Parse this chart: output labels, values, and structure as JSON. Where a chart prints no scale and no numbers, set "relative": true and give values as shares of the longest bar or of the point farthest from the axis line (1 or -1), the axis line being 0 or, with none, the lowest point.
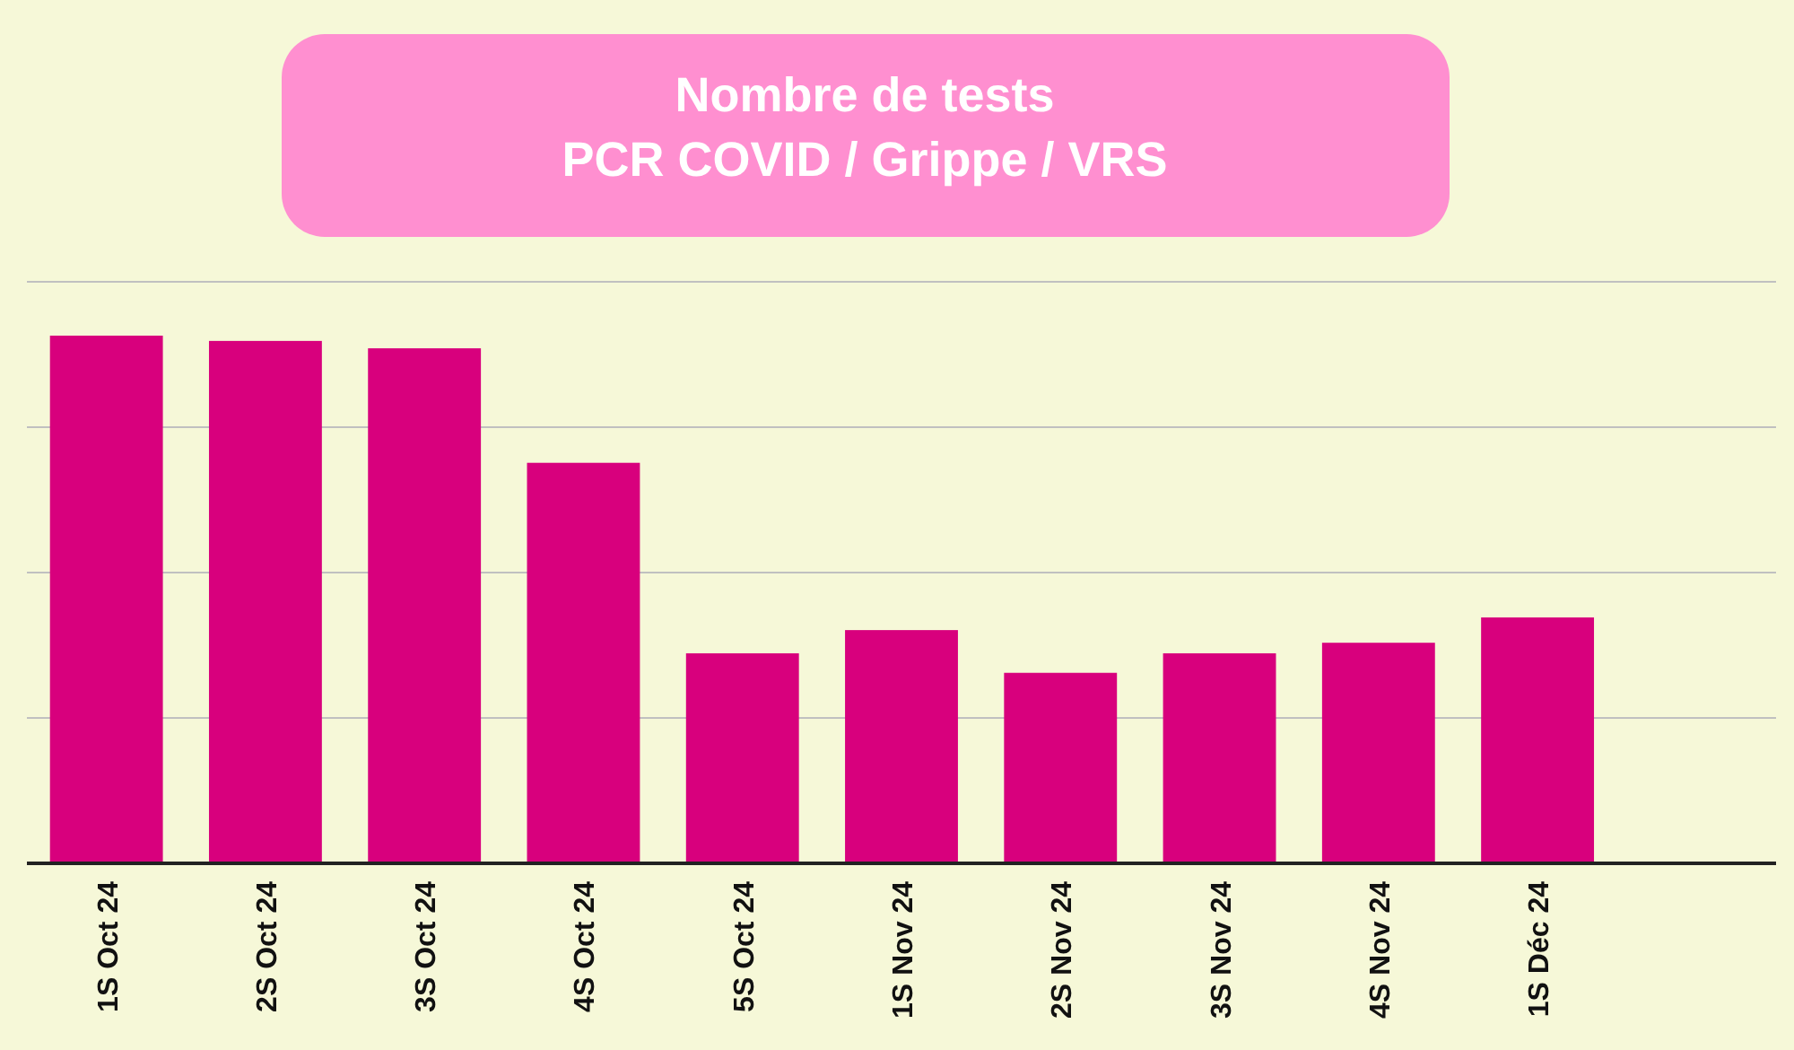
{
  "chart_data": {
    "type": "bar",
    "title": "Nombre de tests\nPCR COVID / Grippe / VRS",
    "categories": [
      "1S Oct 24",
      "2S Oct 24",
      "3S Oct 24",
      "4S Oct 24",
      "5S Oct 24",
      "1S Nov 24",
      "2S Nov 24",
      "3S Nov 24",
      "4S Nov 24",
      "1S Déc 24"
    ],
    "values": [
      1,
      0.99,
      0.976,
      0.759,
      0.398,
      0.442,
      0.361,
      0.398,
      0.418,
      0.466
    ],
    "color": "#d8007d",
    "relative": true,
    "grid": "y"
  }
}
